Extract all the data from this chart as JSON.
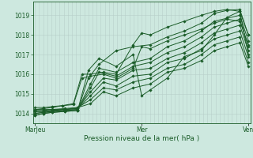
{
  "xlabel": "Pression niveau de la mer( hPa )",
  "background_color": "#cde8df",
  "grid_color_v": "#b8cfca",
  "grid_color_h": "#b8cfca",
  "line_color": "#1a5c28",
  "marker_color": "#1a5c28",
  "xtick_labels": [
    "MarJeu",
    "Mer",
    "Ven"
  ],
  "xtick_positions": [
    0.0,
    0.5,
    1.0
  ],
  "ylim": [
    1013.5,
    1019.7
  ],
  "yticks": [
    1014,
    1015,
    1016,
    1017,
    1018,
    1019
  ],
  "n_vgrid": 52,
  "series": [
    {
      "x": [
        0.0,
        0.04,
        0.08,
        0.14,
        0.2,
        0.25,
        0.3,
        0.38,
        0.46,
        0.5,
        0.54,
        0.62,
        0.7,
        0.78,
        0.84,
        0.9,
        0.96,
        1.0
      ],
      "y": [
        1013.9,
        1014.0,
        1014.05,
        1014.1,
        1014.15,
        1016.2,
        1016.8,
        1016.4,
        1017.0,
        1014.9,
        1015.2,
        1015.8,
        1016.9,
        1017.2,
        1018.0,
        1018.9,
        1019.2,
        1017.0
      ]
    },
    {
      "x": [
        0.0,
        0.04,
        0.08,
        0.14,
        0.2,
        0.25,
        0.3,
        0.38,
        0.46,
        0.54,
        0.62,
        0.7,
        0.78,
        0.84,
        0.9,
        0.96,
        1.0
      ],
      "y": [
        1013.9,
        1014.0,
        1014.05,
        1014.1,
        1014.15,
        1015.8,
        1016.5,
        1017.2,
        1017.4,
        1017.5,
        1017.9,
        1018.2,
        1018.6,
        1019.1,
        1019.25,
        1019.3,
        1018.0
      ]
    },
    {
      "x": [
        0.0,
        0.04,
        0.08,
        0.14,
        0.2,
        0.26,
        0.3,
        0.38,
        0.46,
        0.54,
        0.62,
        0.7,
        0.78,
        0.84,
        0.9,
        0.96,
        1.0
      ],
      "y": [
        1014.0,
        1014.05,
        1014.1,
        1014.15,
        1014.2,
        1015.5,
        1016.3,
        1016.1,
        1016.6,
        1016.8,
        1017.4,
        1017.7,
        1018.2,
        1018.7,
        1018.85,
        1019.0,
        1017.7
      ]
    },
    {
      "x": [
        0.0,
        0.04,
        0.08,
        0.14,
        0.2,
        0.26,
        0.3,
        0.38,
        0.46,
        0.54,
        0.62,
        0.7,
        0.78,
        0.84,
        0.9,
        0.96,
        1.0
      ],
      "y": [
        1014.0,
        1014.05,
        1014.1,
        1014.15,
        1014.2,
        1015.3,
        1016.1,
        1015.9,
        1016.4,
        1016.6,
        1017.1,
        1017.4,
        1017.9,
        1018.4,
        1018.6,
        1018.8,
        1017.4
      ]
    },
    {
      "x": [
        0.0,
        0.04,
        0.08,
        0.14,
        0.2,
        0.26,
        0.32,
        0.38,
        0.46,
        0.54,
        0.62,
        0.7,
        0.78,
        0.84,
        0.9,
        0.96,
        1.0
      ],
      "y": [
        1014.1,
        1014.1,
        1014.15,
        1014.2,
        1014.25,
        1015.1,
        1015.8,
        1015.7,
        1016.2,
        1016.3,
        1016.8,
        1017.1,
        1017.6,
        1018.1,
        1018.3,
        1018.5,
        1017.2
      ]
    },
    {
      "x": [
        0.0,
        0.04,
        0.08,
        0.14,
        0.2,
        0.26,
        0.32,
        0.38,
        0.46,
        0.54,
        0.62,
        0.7,
        0.78,
        0.84,
        0.9,
        0.96,
        1.0
      ],
      "y": [
        1014.1,
        1014.1,
        1014.15,
        1014.2,
        1014.25,
        1014.9,
        1015.6,
        1015.4,
        1015.9,
        1016.0,
        1016.6,
        1016.8,
        1017.3,
        1017.8,
        1018.0,
        1018.2,
        1016.9
      ]
    },
    {
      "x": [
        0.0,
        0.04,
        0.08,
        0.14,
        0.2,
        0.26,
        0.32,
        0.38,
        0.46,
        0.54,
        0.62,
        0.7,
        0.78,
        0.84,
        0.9,
        0.96,
        1.0
      ],
      "y": [
        1014.15,
        1014.15,
        1014.2,
        1014.2,
        1014.3,
        1014.7,
        1015.3,
        1015.2,
        1015.6,
        1015.8,
        1016.3,
        1016.5,
        1017.0,
        1017.5,
        1017.7,
        1017.9,
        1016.6
      ]
    },
    {
      "x": [
        0.0,
        0.04,
        0.08,
        0.14,
        0.2,
        0.26,
        0.32,
        0.38,
        0.46,
        0.54,
        0.62,
        0.7,
        0.78,
        0.84,
        0.9,
        0.96,
        1.0
      ],
      "y": [
        1014.2,
        1014.2,
        1014.2,
        1014.25,
        1014.3,
        1014.5,
        1015.1,
        1014.9,
        1015.3,
        1015.5,
        1016.1,
        1016.3,
        1016.7,
        1017.2,
        1017.4,
        1017.6,
        1016.4
      ]
    },
    {
      "x": [
        0.0,
        0.04,
        0.08,
        0.13,
        0.18,
        0.22,
        0.26,
        0.32,
        0.38,
        0.46,
        0.5,
        0.54,
        0.62,
        0.7,
        0.78,
        0.84,
        0.9,
        0.96,
        1.0
      ],
      "y": [
        1014.2,
        1014.25,
        1014.3,
        1014.4,
        1014.5,
        1016.0,
        1016.0,
        1016.1,
        1016.0,
        1017.5,
        1018.1,
        1018.0,
        1018.4,
        1018.7,
        1019.0,
        1019.2,
        1019.3,
        1019.2,
        1018.0
      ]
    },
    {
      "x": [
        0.0,
        0.04,
        0.08,
        0.13,
        0.18,
        0.22,
        0.26,
        0.32,
        0.38,
        0.46,
        0.5,
        0.54,
        0.62,
        0.7,
        0.78,
        0.84,
        0.9,
        0.96,
        1.0
      ],
      "y": [
        1014.3,
        1014.3,
        1014.35,
        1014.4,
        1014.45,
        1015.8,
        1015.9,
        1016.0,
        1015.8,
        1016.3,
        1017.4,
        1017.3,
        1017.7,
        1018.0,
        1018.3,
        1018.6,
        1018.8,
        1018.7,
        1017.5
      ]
    }
  ]
}
